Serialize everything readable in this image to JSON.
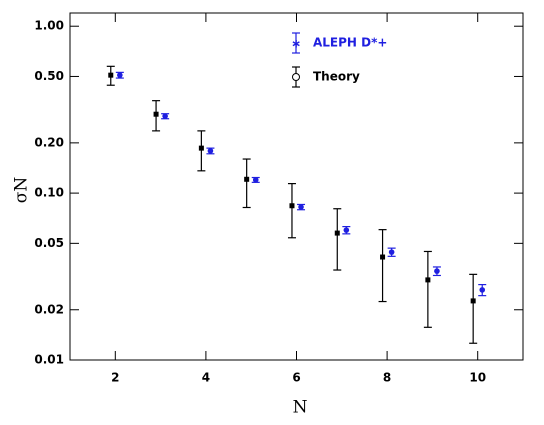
{
  "chart_data": {
    "type": "errorbar",
    "x_label": "N",
    "y_label": "σN",
    "xlim": [
      1,
      11
    ],
    "xticks": [
      2,
      4,
      6,
      8,
      10
    ],
    "ylim": [
      0.01,
      1.2
    ],
    "log_y": true,
    "yticks": [
      {
        "value": 1.0,
        "label": "1.00"
      },
      {
        "value": 0.5,
        "label": "0.50"
      },
      {
        "value": 0.2,
        "label": "0.20"
      },
      {
        "value": 0.1,
        "label": "0.10"
      },
      0.05,
      0.02,
      0.01
    ],
    "legend": "top-center",
    "series": [
      {
        "name": "ALEPH D*+",
        "color": "#1f1fe0",
        "marker": "circle",
        "x": [
          2.1,
          3.1,
          4.1,
          5.1,
          6.1,
          7.1,
          8.1,
          9.1,
          10.1
        ],
        "values": [
          0.509,
          0.289,
          0.179,
          0.12,
          0.0825,
          0.06,
          0.0443,
          0.0341,
          0.0263
        ],
        "errors": [
          0.02,
          0.01,
          0.007,
          0.004,
          0.003,
          0.003,
          0.0025,
          0.002,
          0.002
        ]
      },
      {
        "name": "Theory",
        "color": "#000000",
        "marker": "square",
        "x": [
          1.9,
          2.9,
          3.9,
          4.9,
          5.9,
          6.9,
          7.9,
          8.9,
          9.9
        ],
        "values": [
          0.509,
          0.297,
          0.186,
          0.121,
          0.084,
          0.0576,
          0.0414,
          0.0302,
          0.0226
        ],
        "errors": [
          0.066,
          0.061,
          0.05,
          0.039,
          0.03,
          0.023,
          0.019,
          0.0145,
          0.01
        ]
      }
    ]
  }
}
